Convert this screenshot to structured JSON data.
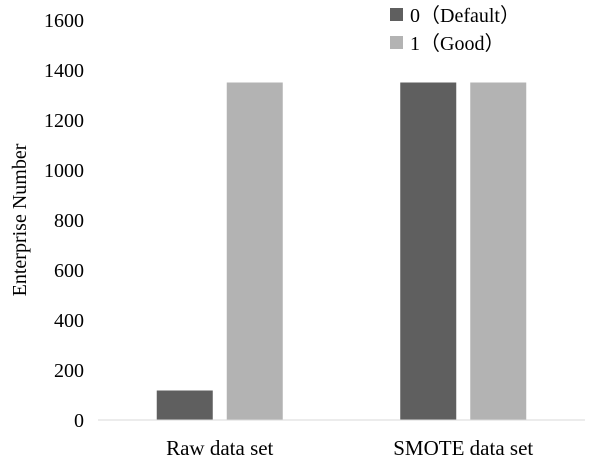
{
  "chart_data": {
    "type": "bar",
    "categories": [
      "Raw data set",
      "SMOTE data set"
    ],
    "series": [
      {
        "name": "0（Default）",
        "values": [
          118,
          1350
        ],
        "color": "#5f5f5f"
      },
      {
        "name": "1（Good）",
        "values": [
          1350,
          1350
        ],
        "color": "#b3b3b3"
      }
    ],
    "ylabel": "Enterprise Number",
    "xlabel": "",
    "ylim": [
      0,
      1600
    ],
    "yticks": [
      0,
      200,
      400,
      600,
      800,
      1000,
      1200,
      1400,
      1600
    ],
    "grid": false,
    "legend_position": "top-right"
  }
}
